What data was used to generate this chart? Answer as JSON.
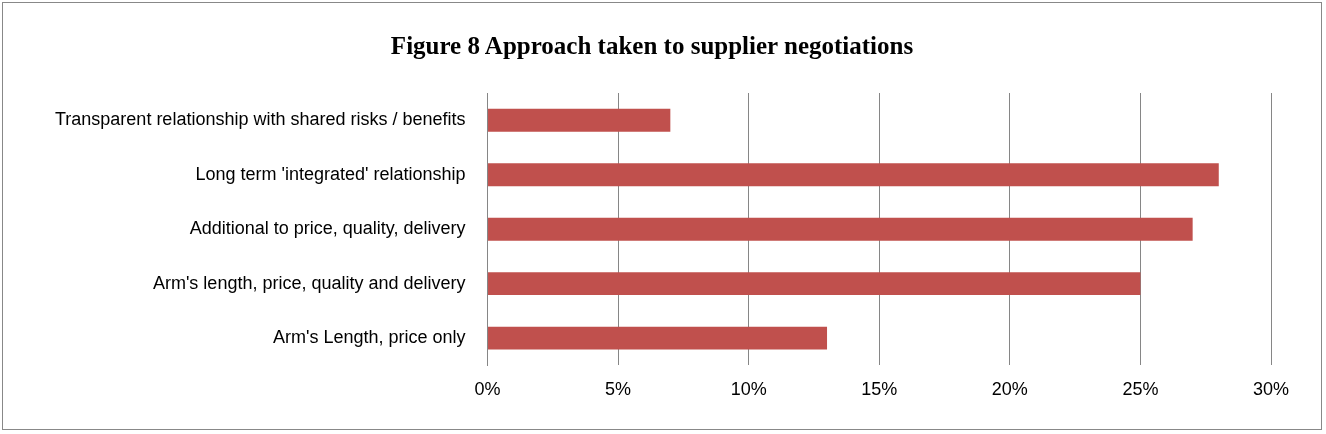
{
  "chart_data": {
    "type": "bar",
    "orientation": "horizontal",
    "title": "Figure 8 Approach taken to supplier negotiations",
    "categories": [
      "Transparent relationship with shared risks / benefits",
      "Long term 'integrated' relationship",
      "Additional to price, quality, delivery",
      "Arm's length, price, quality and delivery",
      "Arm's Length, price only"
    ],
    "values": [
      7,
      28,
      27,
      25,
      13
    ],
    "color": "#c0504d",
    "xlim": [
      0,
      30
    ],
    "xticks": [
      {
        "value": 0,
        "label": "0%"
      },
      {
        "value": 5,
        "label": "5%"
      },
      {
        "value": 10,
        "label": "10%"
      },
      {
        "value": 15,
        "label": "15%"
      },
      {
        "value": 20,
        "label": "20%"
      },
      {
        "value": 25,
        "label": "25%"
      },
      {
        "value": 30,
        "label": "30%"
      }
    ],
    "grid": "x",
    "legend": false
  }
}
